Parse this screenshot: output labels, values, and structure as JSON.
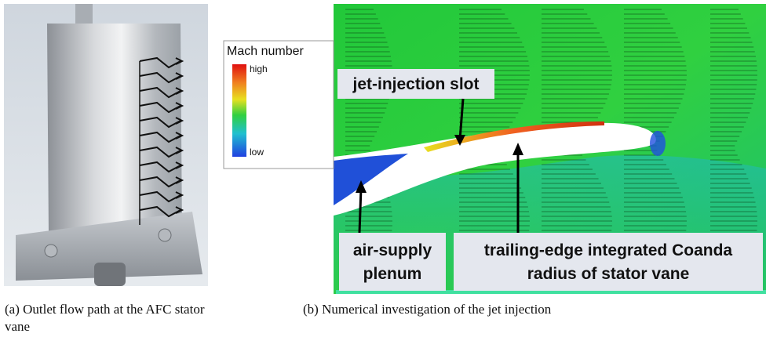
{
  "subfigures": [
    {
      "caption": "(a)  Outlet flow path at the AFC stator vane"
    },
    {
      "caption": "(b)  Numerical investigation of the jet injection",
      "legend": {
        "title": "Mach number",
        "high": "high",
        "low": "low"
      },
      "annotations": [
        {
          "lines": [
            "jet-injection slot"
          ]
        },
        {
          "lines": [
            "air-supply",
            "plenum"
          ]
        },
        {
          "lines": [
            "trailing-edge integrated Coanda",
            "radius of stator vane"
          ]
        }
      ]
    }
  ]
}
